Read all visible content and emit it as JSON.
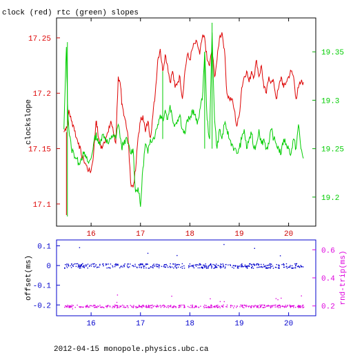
{
  "chart_data": [
    {
      "type": "line",
      "title": "clock (red) rtc (green) slopes",
      "ylabel": "clockslope",
      "xlim": [
        15.3,
        20.55
      ],
      "x_ticks": [
        "16",
        "17",
        "18",
        "19",
        "20"
      ],
      "y_left": {
        "lim": [
          17.08,
          17.268
        ],
        "ticks": [
          "17.1",
          "17.15",
          "17.2",
          "17.25"
        ],
        "color": "#dd0000"
      },
      "y_right": {
        "lim": [
          19.17,
          19.385
        ],
        "ticks": [
          "19.2",
          "19.25",
          "19.3",
          "19.35"
        ],
        "color": "#00cc00"
      },
      "grid": false,
      "series": [
        {
          "name": "clock",
          "color": "#dd0000",
          "axis": "left",
          "x": [
            15.45,
            15.5,
            15.52,
            15.55,
            15.6,
            15.65,
            15.7,
            15.75,
            15.8,
            15.85,
            15.9,
            15.95,
            16.0,
            16.05,
            16.1,
            16.12,
            16.15,
            16.2,
            16.25,
            16.3,
            16.35,
            16.4,
            16.45,
            16.5,
            16.55,
            16.6,
            16.62,
            16.65,
            16.7,
            16.75,
            16.8,
            16.85,
            16.9,
            16.95,
            17.0,
            17.05,
            17.1,
            17.15,
            17.2,
            17.25,
            17.3,
            17.35,
            17.4,
            17.45,
            17.5,
            17.55,
            17.6,
            17.65,
            17.7,
            17.75,
            17.8,
            17.85,
            17.9,
            17.95,
            18.0,
            18.05,
            18.1,
            18.15,
            18.2,
            18.25,
            18.3,
            18.35,
            18.4,
            18.45,
            18.5,
            18.55,
            18.6,
            18.65,
            18.7,
            18.75,
            18.8,
            18.85,
            18.9,
            18.95,
            19.0,
            19.05,
            19.1,
            19.15,
            19.2,
            19.25,
            19.3,
            19.35,
            19.4,
            19.45,
            19.5,
            19.55,
            19.6,
            19.65,
            19.7,
            19.75,
            19.8,
            19.85,
            19.9,
            19.95,
            20.0,
            20.05,
            20.1,
            20.15,
            20.2,
            20.25,
            20.3
          ],
          "y": [
            17.165,
            17.17,
            17.17,
            17.185,
            17.175,
            17.17,
            17.16,
            17.155,
            17.145,
            17.14,
            17.135,
            17.13,
            17.13,
            17.145,
            17.175,
            17.17,
            17.16,
            17.15,
            17.155,
            17.16,
            17.165,
            17.175,
            17.165,
            17.155,
            17.215,
            17.205,
            17.19,
            17.185,
            17.175,
            17.16,
            17.12,
            17.115,
            17.13,
            17.16,
            17.175,
            17.18,
            17.165,
            17.175,
            17.16,
            17.18,
            17.2,
            17.23,
            17.24,
            17.22,
            17.235,
            17.225,
            17.21,
            17.22,
            17.205,
            17.21,
            17.215,
            17.195,
            17.22,
            17.235,
            17.23,
            17.24,
            17.245,
            17.245,
            17.235,
            17.25,
            17.25,
            17.23,
            17.225,
            17.24,
            17.215,
            17.23,
            17.25,
            17.255,
            17.24,
            17.2,
            17.195,
            17.195,
            17.185,
            17.17,
            17.18,
            17.205,
            17.215,
            17.22,
            17.21,
            17.22,
            17.215,
            17.23,
            17.215,
            17.225,
            17.205,
            17.2,
            17.215,
            17.21,
            17.21,
            17.195,
            17.205,
            17.215,
            17.205,
            17.21,
            17.215,
            17.22,
            17.215,
            17.195,
            17.205,
            17.21,
            17.21
          ]
        },
        {
          "name": "rtc",
          "color": "#00cc00",
          "axis": "right",
          "x": [
            15.45,
            15.5,
            15.52,
            15.55,
            15.6,
            15.65,
            15.7,
            15.75,
            15.8,
            15.85,
            15.9,
            15.95,
            16.0,
            16.05,
            16.1,
            16.12,
            16.15,
            16.2,
            16.25,
            16.3,
            16.35,
            16.4,
            16.45,
            16.5,
            16.55,
            16.6,
            16.62,
            16.65,
            16.7,
            16.75,
            16.8,
            16.85,
            16.9,
            16.95,
            17.0,
            17.05,
            17.1,
            17.15,
            17.2,
            17.25,
            17.3,
            17.35,
            17.4,
            17.45,
            17.5,
            17.55,
            17.6,
            17.65,
            17.7,
            17.75,
            17.8,
            17.85,
            17.9,
            17.95,
            18.0,
            18.05,
            18.1,
            18.15,
            18.2,
            18.25,
            18.3,
            18.35,
            18.4,
            18.45,
            18.5,
            18.55,
            18.6,
            18.65,
            18.7,
            18.75,
            18.8,
            18.85,
            18.9,
            18.95,
            19.0,
            19.05,
            19.1,
            19.15,
            19.2,
            19.25,
            19.3,
            19.35,
            19.4,
            19.45,
            19.5,
            19.55,
            19.6,
            19.65,
            19.7,
            19.75,
            19.8,
            19.85,
            19.9,
            19.95,
            20.0,
            20.05,
            20.1,
            20.15,
            20.2,
            20.25,
            20.3
          ],
          "y": [
            19.27,
            19.355,
            19.3,
            19.27,
            19.25,
            19.245,
            19.24,
            19.235,
            19.24,
            19.245,
            19.24,
            19.235,
            19.24,
            19.255,
            19.265,
            19.26,
            19.255,
            19.26,
            19.265,
            19.26,
            19.255,
            19.26,
            19.265,
            19.26,
            19.275,
            19.26,
            19.25,
            19.255,
            19.26,
            19.255,
            19.245,
            19.25,
            19.205,
            19.21,
            19.19,
            19.23,
            19.255,
            19.245,
            19.26,
            19.26,
            19.265,
            19.275,
            19.285,
            19.28,
            19.29,
            19.28,
            19.295,
            19.28,
            19.275,
            19.28,
            19.285,
            19.27,
            19.265,
            19.28,
            19.28,
            19.29,
            19.285,
            19.275,
            19.29,
            19.3,
            19.35,
            19.28,
            19.26,
            19.37,
            19.28,
            19.25,
            19.27,
            19.26,
            19.275,
            19.27,
            19.26,
            19.255,
            19.25,
            19.245,
            19.25,
            19.26,
            19.27,
            19.25,
            19.26,
            19.265,
            19.25,
            19.255,
            19.27,
            19.255,
            19.26,
            19.25,
            19.255,
            19.27,
            19.26,
            19.255,
            19.25,
            19.245,
            19.26,
            19.255,
            19.25,
            19.245,
            19.26,
            19.25,
            19.275,
            19.25,
            19.24
          ]
        }
      ]
    },
    {
      "type": "scatter",
      "ylabel_left": "offset(ms)",
      "ylabel_right": "rnd-trip(ms)",
      "xlim": [
        15.3,
        20.55
      ],
      "x_ticks": [
        "16",
        "17",
        "18",
        "19",
        "20"
      ],
      "y_left": {
        "lim": [
          -0.255,
          0.13
        ],
        "ticks": [
          "0.1",
          "0",
          "-0.1",
          "-0.2"
        ],
        "color": "#0000cc"
      },
      "y_right": {
        "lim": [
          0.13,
          0.67
        ],
        "ticks": [
          "0.6",
          "0.4",
          "0.2"
        ],
        "color": "#dd00dd"
      },
      "grid": false,
      "series": [
        {
          "name": "offset",
          "color": "#0000cc",
          "axis": "left",
          "center": 0.0,
          "spread": 0.012,
          "x_range": [
            15.45,
            20.3
          ]
        },
        {
          "name": "rnd-trip",
          "color": "#dd00dd",
          "axis": "right",
          "center": 0.2,
          "spread": 0.01,
          "x_range": [
            15.45,
            20.3
          ]
        }
      ]
    }
  ],
  "footer": "2012-04-15  monopole.physics.ubc.ca"
}
